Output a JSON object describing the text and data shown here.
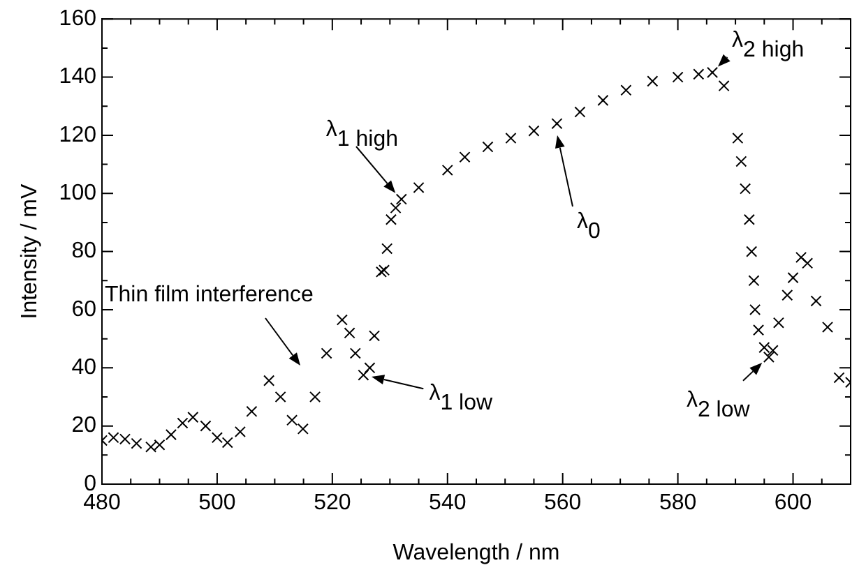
{
  "chart_data": {
    "type": "scatter",
    "xlabel": "Wavelength / nm",
    "ylabel": "Intensity / mV",
    "xlim": [
      480,
      610
    ],
    "ylim": [
      0,
      160
    ],
    "xticks": [
      480,
      {
        "value": 485,
        "label": null
      },
      {
        "value": 490,
        "label": null
      },
      {
        "value": 495,
        "label": null
      },
      500,
      {
        "value": 505,
        "label": null
      },
      {
        "value": 510,
        "label": null
      },
      {
        "value": 515,
        "label": null
      },
      520,
      {
        "value": 525,
        "label": null
      },
      {
        "value": 530,
        "label": null
      },
      {
        "value": 535,
        "label": null
      },
      540,
      {
        "value": 545,
        "label": null
      },
      {
        "value": 550,
        "label": null
      },
      {
        "value": 555,
        "label": null
      },
      560,
      {
        "value": 565,
        "label": null
      },
      {
        "value": 570,
        "label": null
      },
      {
        "value": 575,
        "label": null
      },
      580,
      {
        "value": 585,
        "label": null
      },
      {
        "value": 590,
        "label": null
      },
      {
        "value": 595,
        "label": null
      },
      600,
      {
        "value": 605,
        "label": null
      }
    ],
    "yticks": [
      0,
      {
        "value": 10,
        "label": null
      },
      20,
      {
        "value": 30,
        "label": null
      },
      40,
      {
        "value": 50,
        "label": null
      },
      60,
      {
        "value": 70,
        "label": null
      },
      80,
      {
        "value": 90,
        "label": null
      },
      100,
      {
        "value": 110,
        "label": null
      },
      120,
      {
        "value": 130,
        "label": null
      },
      140,
      {
        "value": 150,
        "label": null
      },
      160
    ],
    "grid": false,
    "legend": false,
    "marker": "cross",
    "series": [
      {
        "color": "#000000",
        "x": [
          480,
          482,
          484,
          486,
          488.5,
          490,
          492,
          494,
          495.8,
          498,
          500,
          501.8,
          504,
          506,
          509,
          511,
          513,
          514.9,
          517,
          519,
          521.7,
          523,
          524,
          525.4,
          526.5,
          527.3,
          528.5,
          529,
          529.5,
          530.2,
          531,
          532,
          535,
          540,
          543,
          547,
          551,
          555,
          559,
          563,
          567,
          571,
          575.6,
          580,
          583.6,
          586,
          588,
          590.4,
          591,
          591.7,
          592.4,
          592.8,
          593.2,
          593.4,
          594,
          595,
          595.8,
          596.5,
          597.5,
          599,
          600,
          601.4,
          602.5,
          604,
          606,
          608,
          610
        ],
        "values": [
          15,
          16,
          15.5,
          14,
          12.8,
          13.5,
          17,
          21,
          23,
          20,
          16,
          14.3,
          18,
          25,
          35.6,
          30,
          22,
          19,
          30,
          45,
          56.5,
          52,
          45,
          37.5,
          40,
          51,
          73,
          73.6,
          81,
          91,
          95,
          98,
          102,
          108,
          112.5,
          116,
          119,
          121.5,
          124,
          128,
          132,
          135.5,
          138.6,
          140,
          141,
          141.6,
          137,
          119,
          111,
          101.6,
          91,
          80,
          70,
          60,
          53,
          47,
          43.7,
          46,
          55.5,
          65,
          71,
          78,
          76,
          63,
          54,
          36.6,
          35
        ]
      }
    ],
    "annotations": [
      "Thin film interference",
      {
        "text": "λ$_{1 low}$",
        "x": 525.4,
        "y": 37.5
      },
      {
        "text": "λ$_{1 high}$",
        "x": 532,
        "y": 98
      },
      "λ$_{0}$",
      {
        "text": "λ$_{2 high}$",
        "x": 586,
        "y": 141.6
      },
      {
        "text": "λ$_{2 low}$",
        "x": 595.8,
        "y": 43.7
      }
    ]
  }
}
